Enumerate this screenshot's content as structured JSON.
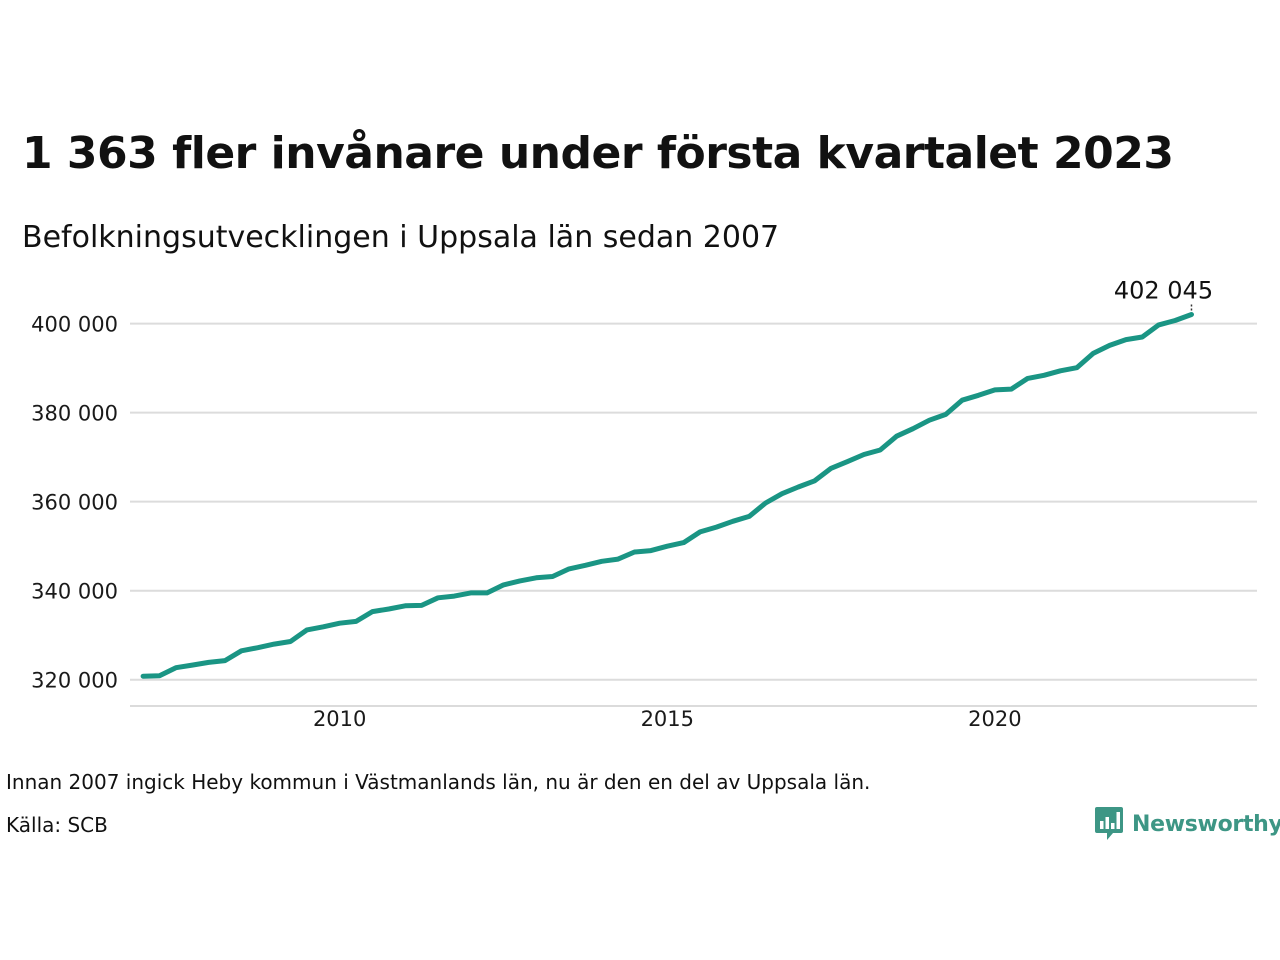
{
  "chart_data": {
    "type": "line",
    "title": "1 363 fler invånare under första kvartalet 2023",
    "subtitle": "Befolkningsutvecklingen i Uppsala län sedan 2007",
    "xlabel": "",
    "ylabel": "",
    "ylim": [
      315000,
      408000
    ],
    "xlim": [
      2006.8,
      2024.0
    ],
    "yticks": [
      {
        "value": 320000,
        "label": "320 000"
      },
      {
        "value": 340000,
        "label": "340 000"
      },
      {
        "value": 360000,
        "label": "360 000"
      },
      {
        "value": 380000,
        "label": "380 000"
      },
      {
        "value": 400000,
        "label": "400 000"
      }
    ],
    "xticks": [
      {
        "value": 2010,
        "label": "2010"
      },
      {
        "value": 2015,
        "label": "2015"
      },
      {
        "value": 2020,
        "label": "2020"
      }
    ],
    "grid": "horizontal",
    "line_color": "#1a9584",
    "x": [
      "2007 Q1",
      "2007 Q2",
      "2007 Q3",
      "2007 Q4",
      "2008 Q1",
      "2008 Q2",
      "2008 Q3",
      "2008 Q4",
      "2009 Q1",
      "2009 Q2",
      "2009 Q3",
      "2009 Q4",
      "2010 Q1",
      "2010 Q2",
      "2010 Q3",
      "2010 Q4",
      "2011 Q1",
      "2011 Q2",
      "2011 Q3",
      "2011 Q4",
      "2012 Q1",
      "2012 Q2",
      "2012 Q3",
      "2012 Q4",
      "2013 Q1",
      "2013 Q2",
      "2013 Q3",
      "2013 Q4",
      "2014 Q1",
      "2014 Q2",
      "2014 Q3",
      "2014 Q4",
      "2015 Q1",
      "2015 Q2",
      "2015 Q3",
      "2015 Q4",
      "2016 Q1",
      "2016 Q2",
      "2016 Q3",
      "2016 Q4",
      "2017 Q1",
      "2017 Q2",
      "2017 Q3",
      "2017 Q4",
      "2018 Q1",
      "2018 Q2",
      "2018 Q3",
      "2018 Q4",
      "2019 Q1",
      "2019 Q2",
      "2019 Q3",
      "2019 Q4",
      "2020 Q1",
      "2020 Q2",
      "2020 Q3",
      "2020 Q4",
      "2021 Q1",
      "2021 Q2",
      "2021 Q3",
      "2021 Q4",
      "2022 Q1",
      "2022 Q2",
      "2022 Q3",
      "2022 Q4",
      "2023 Q1"
    ],
    "series": [
      {
        "values": [
          320800,
          320900,
          322700,
          323300,
          323900,
          324300,
          326500,
          327200,
          328000,
          328600,
          331200,
          331900,
          332700,
          333100,
          335300,
          335900,
          336600,
          336700,
          338400,
          338800,
          339500,
          339500,
          341300,
          342200,
          342900,
          343200,
          344900,
          345700,
          346600,
          347100,
          348700,
          349000,
          350000,
          350800,
          353200,
          354300,
          355600,
          356700,
          359700,
          361800,
          363300,
          364700,
          367500,
          369000,
          370600,
          371600,
          374700,
          376400,
          378300,
          379600,
          382800,
          383900,
          385100,
          385300,
          387700,
          388400,
          389400,
          390100,
          393300,
          395100,
          396400,
          397000,
          399700,
          400700,
          402045
        ]
      }
    ],
    "end_label": "402 045"
  },
  "footer": {
    "note": "Innan 2007 ingick Heby kommun i Västmanlands län, nu är den en del av Uppsala län.",
    "source": "Källa: SCB",
    "brand_name": "Newsworthy",
    "brand_color": "#3d9685",
    "brand_icon": "bar-chart-speech-bubble-icon"
  }
}
